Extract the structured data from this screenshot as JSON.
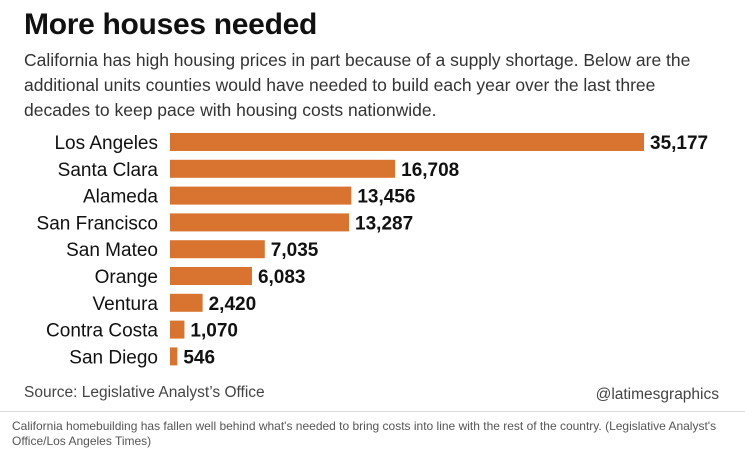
{
  "header": {
    "title": "More houses needed",
    "subtitle": "California has high housing prices in part because of a supply shortage. Below are the additional units counties would have needed to build each year over the last three decades to keep pace with housing costs nationwide."
  },
  "footer": {
    "source": "Source: Legislative Analyst’s Office",
    "credit": "@latimesgraphics",
    "caption": "California homebuilding has fallen well behind what's needed to bring costs into line with the rest of the country. (Legislative Analyst's Office/Los Angeles Times)"
  },
  "colors": {
    "bar": "#d8742f",
    "text": "#111111"
  },
  "chart_data": {
    "type": "bar",
    "orientation": "horizontal",
    "title": "More houses needed",
    "xlabel": "",
    "ylabel": "",
    "grid": false,
    "categories": [
      "Los Angeles",
      "Santa Clara",
      "Alameda",
      "San Francisco",
      "San Mateo",
      "Orange",
      "Ventura",
      "Contra Costa",
      "San Diego"
    ],
    "values": [
      35177,
      16708,
      13456,
      13287,
      7035,
      6083,
      2420,
      1070,
      546
    ],
    "value_labels": [
      "35,177",
      "16,708",
      "13,456",
      "13,287",
      "7,035",
      "6,083",
      "2,420",
      "1,070",
      "546"
    ],
    "xlim": [
      0,
      35177
    ]
  }
}
